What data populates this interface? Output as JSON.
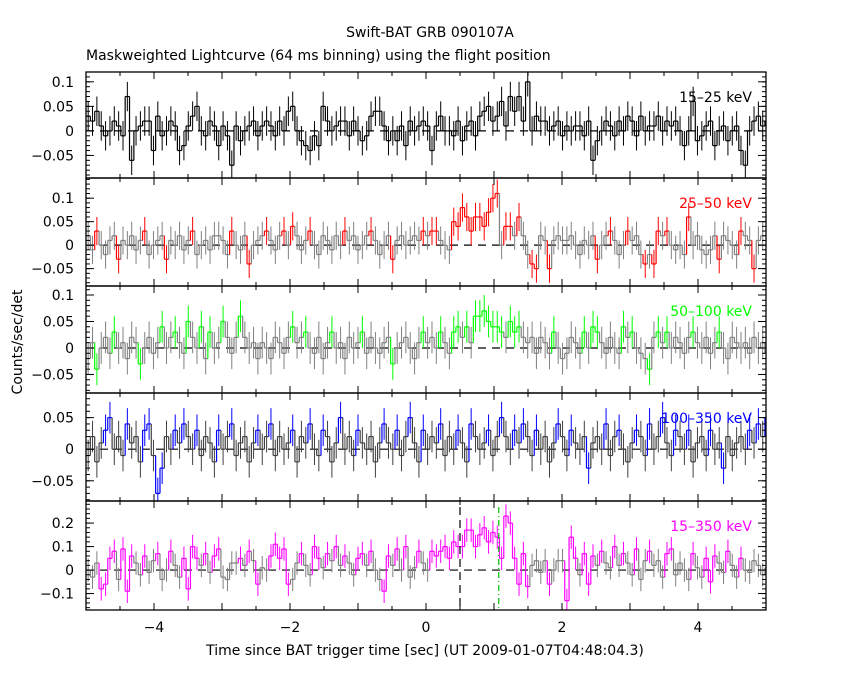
{
  "chart_data": [
    {
      "type": "line",
      "title": "Swift-BAT GRB 090107A",
      "subtitle": "Maskweighted Lightcurve (64 ms binning) using the flight position",
      "xlabel": "Time since BAT trigger time [sec] (UT 2009-01-07T04:48:04.3)",
      "ylabel": "Counts/sec/det",
      "xlim": [
        -5,
        5
      ],
      "x_ticks": [
        -4,
        -2,
        0,
        2,
        4
      ],
      "bin_start": -5.0,
      "bin_width_s": 0.064,
      "reference_lines": {
        "y_zero_dashed": 0,
        "t_dashed": 0.5,
        "t_dash_dot_green": 1.07
      },
      "grid": false,
      "panels": [
        {
          "name": "15-25 keV",
          "color": "#000000",
          "alt_color": "#000000",
          "ylim": [
            -0.096,
            0.12
          ],
          "y_ticks": [
            -0.05,
            0,
            0.05,
            0.1
          ],
          "y_tick_labels": [
            "-0.05",
            "0",
            "0.05",
            "0.1"
          ],
          "typical_error": 0.03,
          "values": [
            0.03,
            0.02,
            0.04,
            0.01,
            -0.01,
            0,
            0.02,
            0.01,
            -0.01,
            0.07,
            -0.06,
            0,
            0.01,
            0.02,
            0.02,
            -0.04,
            0.03,
            -0.01,
            0,
            0.02,
            0.01,
            -0.04,
            -0.03,
            0.01,
            0.03,
            0.05,
            0,
            -0.01,
            0.02,
            0.01,
            -0.03,
            0.01,
            -0.01,
            -0.07,
            0.01,
            -0.02,
            0,
            0.01,
            0.02,
            -0.01,
            0.01,
            0.02,
            0.01,
            -0.01,
            0.02,
            0,
            0.04,
            0.05,
            0,
            -0.02,
            -0.03,
            -0.04,
            -0.01,
            -0.03,
            0.05,
            0.02,
            0,
            0.01,
            0.02,
            0.02,
            -0.01,
            0.02,
            0,
            -0.02,
            -0.01,
            0.03,
            0.04,
            0.04,
            0.01,
            -0.02,
            0,
            -0.02,
            0.01,
            -0.03,
            0.02,
            0,
            0.01,
            0.02,
            0.01,
            -0.04,
            0.01,
            0.03,
            0,
            0,
            -0.01,
            0.02,
            -0.02,
            0.01,
            0.02,
            -0.01,
            0.03,
            0.04,
            0.05,
            0.02,
            0.03,
            0.06,
            0.01,
            0.07,
            0.04,
            0.07,
            0.02,
            0.1,
            0,
            0.03,
            0.02,
            0.02,
            0,
            0.01,
            0.02,
            -0.01,
            0.01,
            0,
            0.01,
            0.01,
            -0.01,
            0.02,
            -0.06,
            -0.02,
            0,
            0.02,
            0.01,
            -0.01,
            0.02,
            0,
            0.03,
            0.02,
            -0.01,
            0.03,
            0,
            0.01,
            0.01,
            0.03,
            0,
            0.02,
            0.01,
            0.02,
            0,
            -0.03,
            0,
            0.06,
            -0.02,
            -0.01,
            0.01,
            0.02,
            -0.03,
            0,
            0.01,
            -0.02,
            0,
            0.01,
            -0.04,
            -0.07,
            0,
            0.02,
            0.03,
            0.01,
            0.02,
            0.03
          ]
        },
        {
          "name": "25-50 keV",
          "color": "#ff0000",
          "alt_color": "#808080",
          "ylim": [
            -0.087,
            0.143
          ],
          "y_ticks": [
            -0.05,
            0,
            0.05,
            0.1
          ],
          "y_tick_labels": [
            "-0.05",
            "0",
            "0.05",
            "0.1"
          ],
          "typical_error": 0.03,
          "values": [
            0.02,
            -0.01,
            0.03,
            0,
            -0.02,
            0.01,
            0.02,
            -0.03,
            0.01,
            0,
            0.02,
            -0.01,
            0.01,
            0.03,
            -0.02,
            0,
            0.01,
            0.02,
            -0.03,
            0.01,
            0,
            0.02,
            -0.01,
            0.01,
            0.03,
            -0.02,
            0,
            0.01,
            -0.01,
            0.02,
            0.02,
            0.01,
            -0.02,
            0.03,
            0,
            -0.01,
            0.02,
            -0.04,
            0,
            0.01,
            0.02,
            0.03,
            0.01,
            -0.01,
            0.02,
            0.03,
            0,
            0.04,
            0.02,
            -0.01,
            0.01,
            0.03,
            0,
            -0.02,
            0.02,
            0.01,
            -0.01,
            0.02,
            0,
            0.03,
            0.01,
            0.02,
            -0.01,
            0,
            0.02,
            0.03,
            0.01,
            -0.02,
            0,
            0.02,
            -0.03,
            0.01,
            0.02,
            0,
            0.01,
            0.02,
            0.01,
            0.03,
            0.02,
            0.03,
            0.03,
            0.01,
            0,
            -0.01,
            0.05,
            0.04,
            0.08,
            0.06,
            0.03,
            0.06,
            0.06,
            0.04,
            0.07,
            0.1,
            0.11,
            0,
            0.04,
            0.04,
            0.02,
            0.06,
            0.02,
            -0.02,
            -0.04,
            -0.05,
            0.02,
            0.01,
            -0.05,
            0.01,
            0.02,
            0.01,
            0.01,
            0.02,
            0,
            -0.02,
            0.01,
            0,
            0.02,
            -0.03,
            0,
            0.02,
            0.03,
            0.01,
            -0.02,
            0,
            0.03,
            0.01,
            0.02,
            -0.02,
            -0.04,
            -0.02,
            -0.04,
            0.03,
            0.02,
            0.03,
            0,
            -0.01,
            0,
            -0.02,
            0.06,
            0,
            0.02,
            -0.01,
            -0.02,
            -0.01,
            0.02,
            -0.03,
            0.02,
            0.01,
            0,
            -0.02,
            0.03,
            0.02,
            0.01,
            -0.05,
            0.01,
            0.02,
            0.02,
            0.03
          ]
        },
        {
          "name": "50-100 keV",
          "color": "#00ff00",
          "alt_color": "#808080",
          "ylim": [
            -0.085,
            0.117
          ],
          "y_ticks": [
            -0.05,
            0,
            0.05,
            0.1
          ],
          "y_tick_labels": [
            "-0.05",
            "0",
            "0.05",
            "0.1"
          ],
          "typical_error": 0.03,
          "values": [
            -0.02,
            0.01,
            -0.04,
            0,
            0.02,
            -0.01,
            0.03,
            0,
            0.01,
            -0.02,
            0.02,
            0.01,
            -0.03,
            0,
            0.02,
            -0.01,
            0.01,
            0.04,
            0,
            0.02,
            0.03,
            0.01,
            -0.01,
            0.05,
            0.02,
            0,
            0.04,
            -0.02,
            0.03,
            0,
            0.01,
            0.05,
            0.02,
            -0.01,
            0.02,
            0.06,
            0.02,
            0,
            0.01,
            -0.02,
            0.01,
            0,
            -0.02,
            0.02,
            0.01,
            -0.01,
            0.02,
            0.04,
            0.01,
            0.02,
            0.03,
            0,
            -0.01,
            0.02,
            -0.02,
            0.01,
            0.03,
            0,
            0.01,
            -0.02,
            0.02,
            0,
            0.01,
            0.03,
            -0.01,
            0.02,
            0,
            -0.01,
            0.01,
            0.02,
            -0.03,
            0,
            0.01,
            0.02,
            0,
            -0.02,
            0.01,
            0.03,
            0.01,
            0.02,
            0,
            0.03,
            0.01,
            -0.01,
            0.03,
            0.04,
            0.02,
            0.04,
            0.01,
            0.06,
            0.06,
            0.07,
            0.05,
            0.04,
            0.04,
            0.03,
            0.02,
            0.05,
            0.03,
            0.04,
            0.02,
            0.01,
            0.02,
            -0.01,
            0.02,
            0.01,
            -0.01,
            0.03,
            0,
            -0.02,
            -0.01,
            0.02,
            0.01,
            -0.01,
            0.03,
            0,
            0.04,
            0.03,
            0.01,
            -0.01,
            0.02,
            0,
            -0.01,
            0.04,
            0.02,
            0.03,
            0,
            -0.01,
            -0.02,
            -0.04,
            0.02,
            0.03,
            0.01,
            0.03,
            0,
            0.02,
            0.01,
            -0.01,
            0.02,
            0.03,
            0.01,
            0,
            0.02,
            -0.01,
            0.01,
            0.03,
            0,
            -0.02,
            0.02,
            0.01,
            0,
            0.01,
            -0.01,
            0.02,
            0,
            0.01,
            -0.01,
            -0.03
          ]
        },
        {
          "name": "100-350 keV",
          "color": "#0000ff",
          "alt_color": "#404040",
          "ylim": [
            -0.082,
            0.089
          ],
          "y_ticks": [
            -0.05,
            0,
            0.05
          ],
          "y_tick_labels": [
            "-0.05",
            "0",
            "0.05"
          ],
          "typical_error": 0.025,
          "values": [
            -0.01,
            0.02,
            -0.02,
            0.01,
            0.03,
            0.05,
            0,
            0.02,
            -0.01,
            0.04,
            0.01,
            0.02,
            -0.02,
            0.03,
            0.04,
            -0.01,
            -0.07,
            -0.03,
            0.02,
            0,
            0.03,
            0.01,
            0.04,
            0.02,
            0,
            0.03,
            -0.01,
            0.02,
            0.01,
            -0.02,
            0.03,
            0,
            0.02,
            0.04,
            -0.01,
            0.01,
            0.02,
            -0.02,
            0.01,
            0.03,
            0,
            0.02,
            0.04,
            -0.01,
            0.02,
            0,
            0.01,
            0.03,
            -0.02,
            0.02,
            0.01,
            0.04,
            0,
            -0.01,
            0.03,
            0.02,
            -0.02,
            0.01,
            0.05,
            0,
            0.02,
            -0.01,
            0.03,
            0.01,
            0,
            0.02,
            -0.02,
            0.01,
            0.04,
            0.01,
            0,
            0.03,
            -0.01,
            0.02,
            0.05,
            0.01,
            -0.02,
            0.03,
            0,
            0.02,
            0.01,
            0.04,
            -0.01,
            0.02,
            0,
            0.03,
            0.01,
            -0.02,
            0.04,
            0.02,
            0,
            0.01,
            0.03,
            -0.01,
            0.02,
            0.05,
            0.02,
            0,
            0.03,
            0.01,
            0.04,
            0.02,
            -0.01,
            0.03,
            0,
            0.02,
            -0.02,
            0.01,
            0.04,
            0.02,
            -0.01,
            0.03,
            0.01,
            0,
            0.02,
            -0.03,
            0.01,
            0.02,
            0,
            0.04,
            -0.01,
            0.02,
            0.03,
            0,
            -0.02,
            0.01,
            0.03,
            0.02,
            -0.01,
            0.04,
            0,
            0.02,
            0.05,
            0.01,
            -0.01,
            0.03,
            0.02,
            0,
            0.03,
            -0.02,
            0.01,
            0.02,
            -0.01,
            0.03,
            0,
            0.01,
            -0.03,
            0.02,
            -0.01,
            0.01,
            0.02,
            0,
            0.03,
            0.01,
            0.04,
            0.02,
            0.05,
            0.06
          ]
        },
        {
          "name": "15-350 keV",
          "color": "#ff00ff",
          "alt_color": "#808080",
          "ylim": [
            -0.17,
            0.294
          ],
          "y_ticks": [
            -0.1,
            0,
            0.1,
            0.2
          ],
          "y_tick_labels": [
            "-0.1",
            "0",
            "0.1",
            "0.2"
          ],
          "typical_error": 0.05,
          "values": [
            0,
            -0.03,
            0.03,
            -0.08,
            -0.06,
            0.05,
            0.08,
            -0.04,
            0.09,
            -0.09,
            0.06,
            0.03,
            -0.02,
            0.06,
            -0.01,
            0.04,
            0.07,
            -0.04,
            0,
            0.08,
            0.02,
            -0.03,
            0.05,
            -0.08,
            0.1,
            0.05,
            0.02,
            0.07,
            -0.01,
            0.06,
            0.09,
            -0.03,
            -0.04,
            0.03,
            0.03,
            0.05,
            0.02,
            0.08,
            0.04,
            -0.06,
            0.01,
            0,
            0.06,
            0.11,
            0.05,
            0.09,
            -0.06,
            -0.04,
            0.03,
            0.07,
            0.02,
            -0.02,
            0.1,
            0.05,
            0.01,
            0.07,
            0.04,
            0.1,
            0.02,
            0.06,
            0.03,
            -0.02,
            0.05,
            0.07,
            0.02,
            0.08,
            0,
            -0.04,
            -0.09,
            0.06,
            0.02,
            0.09,
            0,
            0.1,
            -0.03,
            0.01,
            0.08,
            0.03,
            0,
            0.08,
            0.06,
            0.08,
            0.1,
            0.05,
            0.12,
            0.1,
            0.1,
            0.17,
            0.17,
            0.1,
            0.15,
            0.18,
            0.12,
            0.16,
            0.14,
            0.05,
            0.23,
            0.2,
            0.05,
            -0.06,
            0.07,
            -0.07,
            0.02,
            0.04,
            -0.01,
            0.04,
            -0.06,
            0,
            0.04,
            0.04,
            -0.13,
            0.14,
            0.05,
            -0.02,
            0.07,
            -0.06,
            0.06,
            0.02,
            0.08,
            0.03,
            0.01,
            0.1,
            0.02,
            0.07,
            0.03,
            -0.02,
            0.09,
            -0.04,
            0.04,
            0.08,
            0.02,
            0.04,
            -0.03,
            0.07,
            0.09,
            -0.02,
            0.03,
            0,
            -0.04,
            0.07,
            0.01,
            -0.03,
            0.05,
            -0.05,
            0.06,
            0.03,
            -0.01,
            0.08,
            0.02,
            -0.03,
            0.05,
            0,
            -0.01,
            0.04,
            0.02,
            -0.02,
            0.01,
            0.14
          ]
        }
      ]
    }
  ]
}
